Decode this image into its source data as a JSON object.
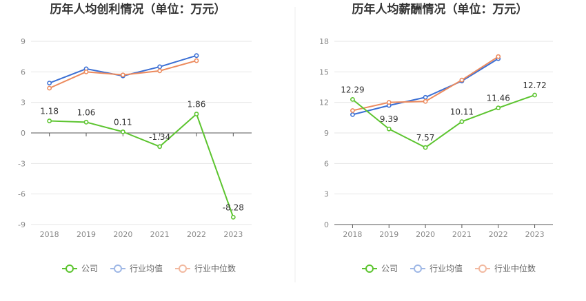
{
  "colors": {
    "company": "#5cc42f",
    "industry_avg": "#3b6fd4",
    "industry_median": "#ec8a5d",
    "legend_avg_faded": "#9fb8e6",
    "legend_median_faded": "#f2b9a0",
    "grid": "#e6e6e6",
    "axis": "#555555"
  },
  "chart_data": [
    {
      "type": "line",
      "title": "历年人均创利情况（单位：万元）",
      "categories": [
        "2018",
        "2019",
        "2020",
        "2021",
        "2022",
        "2023"
      ],
      "ylim": [
        -9,
        9
      ],
      "yticks": [
        -9,
        -6,
        -3,
        0,
        3,
        6,
        9
      ],
      "grid": true,
      "legend_position": "bottom",
      "series": [
        {
          "key": "company",
          "name": "公司",
          "values": [
            1.18,
            1.06,
            0.11,
            -1.34,
            1.86,
            -8.28
          ],
          "labels": [
            "1.18",
            "1.06",
            "0.11",
            "-1.34",
            "1.86",
            "-8.28"
          ]
        },
        {
          "key": "industry_avg",
          "name": "行业均值",
          "values": [
            4.9,
            6.3,
            5.6,
            6.5,
            7.6,
            null
          ]
        },
        {
          "key": "industry_median",
          "name": "行业中位数",
          "values": [
            4.4,
            6.0,
            5.7,
            6.1,
            7.1,
            null
          ]
        }
      ]
    },
    {
      "type": "line",
      "title": "历年人均薪酬情况（单位：万元）",
      "categories": [
        "2018",
        "2019",
        "2020",
        "2021",
        "2022",
        "2023"
      ],
      "ylim": [
        0,
        18
      ],
      "yticks": [
        0,
        3,
        6,
        9,
        12,
        15,
        18
      ],
      "grid": true,
      "legend_position": "bottom",
      "series": [
        {
          "key": "company",
          "name": "公司",
          "values": [
            12.29,
            9.39,
            7.57,
            10.11,
            11.46,
            12.72
          ],
          "labels": [
            "12.29",
            "9.39",
            "7.57",
            "10.11",
            "11.46",
            "12.72"
          ]
        },
        {
          "key": "industry_avg",
          "name": "行业均值",
          "values": [
            10.8,
            11.7,
            12.5,
            14.1,
            16.3,
            null
          ]
        },
        {
          "key": "industry_median",
          "name": "行业中位数",
          "values": [
            11.2,
            12.0,
            12.1,
            14.2,
            16.5,
            null
          ]
        }
      ]
    }
  ]
}
